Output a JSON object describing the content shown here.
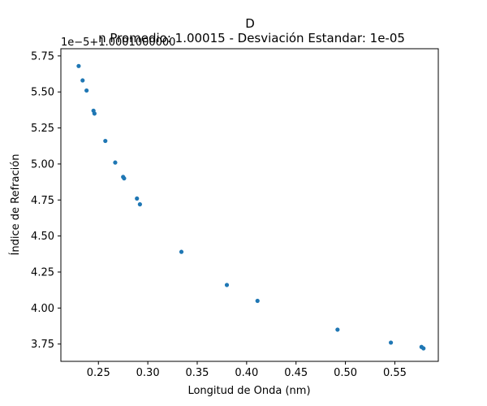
{
  "chart_data": {
    "type": "scatter",
    "title": "D",
    "subtitle": "n Promedio: 1.00015 - Desviación Estandar: 1e-05",
    "xlabel": "Longitud de Onda (nm)",
    "ylabel": "Índice de Refración",
    "offset_text": "1e−5+1.0001000000",
    "xlim": [
      0.212,
      0.594
    ],
    "ylim": [
      3.63,
      5.8
    ],
    "x_ticks": [
      0.25,
      0.3,
      0.35,
      0.4,
      0.45,
      0.5,
      0.55
    ],
    "x_tick_labels": [
      "0.25",
      "0.30",
      "0.35",
      "0.40",
      "0.45",
      "0.50",
      "0.55"
    ],
    "y_ticks": [
      3.75,
      4.0,
      4.25,
      4.5,
      4.75,
      5.0,
      5.25,
      5.5,
      5.75
    ],
    "y_tick_labels": [
      "3.75",
      "4.00",
      "4.25",
      "4.50",
      "4.75",
      "5.00",
      "5.25",
      "5.50",
      "5.75"
    ],
    "grid": false,
    "series": [
      {
        "color": "#1f77b4",
        "points": [
          {
            "x": 0.23,
            "y": 5.68
          },
          {
            "x": 0.234,
            "y": 5.58
          },
          {
            "x": 0.238,
            "y": 5.51
          },
          {
            "x": 0.245,
            "y": 5.37
          },
          {
            "x": 0.246,
            "y": 5.35
          },
          {
            "x": 0.257,
            "y": 5.16
          },
          {
            "x": 0.267,
            "y": 5.01
          },
          {
            "x": 0.275,
            "y": 4.91
          },
          {
            "x": 0.276,
            "y": 4.9
          },
          {
            "x": 0.289,
            "y": 4.76
          },
          {
            "x": 0.292,
            "y": 4.72
          },
          {
            "x": 0.334,
            "y": 4.39
          },
          {
            "x": 0.38,
            "y": 4.16
          },
          {
            "x": 0.411,
            "y": 4.05
          },
          {
            "x": 0.492,
            "y": 3.85
          },
          {
            "x": 0.546,
            "y": 3.76
          },
          {
            "x": 0.577,
            "y": 3.73
          },
          {
            "x": 0.579,
            "y": 3.72
          }
        ]
      }
    ]
  }
}
